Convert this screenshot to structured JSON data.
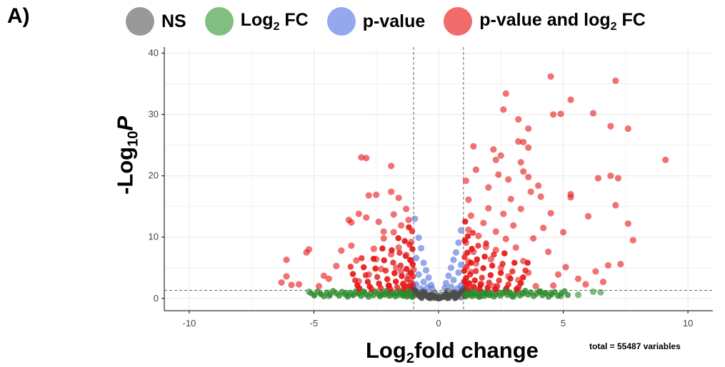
{
  "panel_label": "A)",
  "legend": {
    "items": [
      {
        "label": "NS",
        "sub": "",
        "suffix": "",
        "color": "#999999"
      },
      {
        "label": "Log",
        "sub": "2",
        "suffix": " FC",
        "color": "#7fbf7f"
      },
      {
        "label": "p-value",
        "sub": "",
        "suffix": "",
        "color": "#93a9ee"
      },
      {
        "label": "p-value and log",
        "sub": "2",
        "suffix": " FC",
        "color": "#f26b6b"
      }
    ]
  },
  "axis_titles": {
    "x_main": "Log",
    "x_sub": "2",
    "x_rest": "fold change",
    "y_prefix": "-Log",
    "y_sub": "10",
    "y_rest": "P"
  },
  "footer_note": "total = 55487 variables",
  "chart_data": {
    "type": "scatter",
    "xlim": [
      -11,
      11
    ],
    "ylim": [
      -2,
      41
    ],
    "x_ticks": [
      -10,
      -5,
      0,
      5,
      10
    ],
    "y_ticks": [
      0,
      10,
      20,
      30,
      40
    ],
    "grid": true,
    "legend_position": "top",
    "thresholds": {
      "log2fc": [
        -1,
        1
      ],
      "neg_log10_p": 1.3
    },
    "colors": {
      "NS": "#4d4d4d",
      "FC": "#2e8b2e",
      "P": "#4d6fd9",
      "P_FC": "#e61414"
    },
    "series": [
      {
        "name": "p-value and log2 FC",
        "points": [
          [
            9.1,
            22.6
          ],
          [
            7.1,
            35.5
          ],
          [
            4.5,
            36.2
          ],
          [
            5.3,
            32.4
          ],
          [
            2.7,
            33.4
          ],
          [
            2.6,
            30.8
          ],
          [
            3.2,
            29.2
          ],
          [
            4.9,
            30.1
          ],
          [
            4.6,
            30.0
          ],
          [
            6.2,
            30.2
          ],
          [
            6.9,
            28.1
          ],
          [
            7.6,
            27.7
          ],
          [
            3.6,
            27.7
          ],
          [
            3.4,
            25.5
          ],
          [
            3.2,
            25.6
          ],
          [
            3.6,
            24.6
          ],
          [
            2.2,
            24.3
          ],
          [
            2.5,
            23.3
          ],
          [
            1.4,
            24.8
          ],
          [
            2.3,
            22.6
          ],
          [
            2.4,
            20.2
          ],
          [
            3.3,
            22.2
          ],
          [
            3.4,
            20.7
          ],
          [
            6.4,
            19.6
          ],
          [
            6.9,
            20.0
          ],
          [
            7.2,
            19.6
          ],
          [
            7.1,
            15.2
          ],
          [
            7.6,
            12.2
          ],
          [
            7.8,
            9.5
          ],
          [
            6.0,
            13.4
          ],
          [
            5.3,
            17.0
          ],
          [
            5.3,
            16.5
          ],
          [
            4.0,
            18.4
          ],
          [
            4.1,
            16.6
          ],
          [
            3.7,
            17.4
          ],
          [
            -2.9,
            22.9
          ],
          [
            -3.1,
            23.0
          ],
          [
            -1.9,
            21.6
          ],
          [
            -2.5,
            16.9
          ],
          [
            -2.8,
            16.8
          ],
          [
            -1.9,
            17.4
          ],
          [
            -1.6,
            16.4
          ],
          [
            -3.6,
            12.8
          ],
          [
            -3.5,
            12.4
          ],
          [
            -3.2,
            13.8
          ],
          [
            -2.9,
            13.2
          ],
          [
            -2.4,
            12.5
          ],
          [
            -6.1,
            6.3
          ],
          [
            -6.1,
            3.6
          ],
          [
            -5.2,
            8.0
          ],
          [
            -5.3,
            7.5
          ],
          [
            -4.1,
            5.3
          ],
          [
            -3.9,
            7.8
          ],
          [
            -4.4,
            3.2
          ],
          [
            -3.5,
            8.6
          ],
          [
            -2.2,
            9.8
          ],
          [
            -1.8,
            10.8
          ],
          [
            -1.5,
            11.9
          ],
          [
            -1.2,
            12.8
          ],
          [
            -1.1,
            9.2
          ],
          [
            -1.3,
            7.1
          ],
          [
            -2.5,
            6.4
          ],
          [
            -1.7,
            5.0
          ],
          [
            -1.2,
            3.8
          ],
          [
            -2.8,
            3.9
          ],
          [
            -3.2,
            2.8
          ],
          [
            -1.4,
            2.4
          ],
          [
            -2.0,
            2.1
          ],
          [
            -4.8,
            2.0
          ],
          [
            -5.6,
            2.3
          ],
          [
            -1.6,
            8.3
          ],
          [
            -1.9,
            7.2
          ],
          [
            -2.3,
            4.8
          ],
          [
            1.1,
            19.2
          ],
          [
            1.2,
            16.1
          ],
          [
            1.3,
            13.5
          ],
          [
            1.2,
            11.2
          ],
          [
            1.1,
            9.1
          ],
          [
            1.4,
            7.6
          ],
          [
            1.2,
            6.0
          ],
          [
            1.3,
            4.3
          ],
          [
            1.1,
            2.6
          ],
          [
            1.6,
            10.2
          ],
          [
            1.8,
            12.3
          ],
          [
            2.0,
            14.7
          ],
          [
            1.9,
            8.4
          ],
          [
            2.1,
            6.4
          ],
          [
            2.3,
            10.9
          ],
          [
            2.6,
            13.8
          ],
          [
            2.9,
            16.2
          ],
          [
            2.7,
            9.7
          ],
          [
            3.0,
            11.9
          ],
          [
            3.1,
            8.3
          ],
          [
            2.5,
            5.0
          ],
          [
            2.8,
            3.6
          ],
          [
            3.4,
            6.1
          ],
          [
            3.8,
            9.8
          ],
          [
            4.2,
            11.5
          ],
          [
            4.4,
            7.6
          ],
          [
            3.6,
            4.2
          ],
          [
            4.8,
            3.9
          ],
          [
            5.1,
            5.1
          ],
          [
            5.6,
            3.2
          ],
          [
            6.3,
            4.4
          ],
          [
            6.8,
            5.4
          ],
          [
            7.3,
            5.6
          ],
          [
            6.6,
            2.7
          ],
          [
            5.9,
            2.3
          ],
          [
            4.5,
            13.9
          ],
          [
            5.0,
            10.8
          ],
          [
            4.6,
            2.1
          ],
          [
            3.9,
            2.0
          ],
          [
            2.2,
            2.0
          ],
          [
            1.7,
            2.4
          ],
          [
            1.5,
            5.7
          ],
          [
            2.3,
            7.9
          ],
          [
            3.3,
            14.6
          ],
          [
            3.6,
            19.8
          ],
          [
            2.0,
            18.1
          ],
          [
            1.5,
            21.0
          ],
          [
            2.8,
            19.4
          ],
          [
            3.2,
            3.0
          ],
          [
            -1.0,
            4.7
          ],
          [
            -1.1,
            6.2
          ],
          [
            -1.5,
            4.4
          ],
          [
            -2.6,
            8.1
          ],
          [
            -3.3,
            6.2
          ],
          [
            -4.6,
            3.7
          ],
          [
            -5.9,
            2.2
          ],
          [
            -6.3,
            2.6
          ],
          [
            -2.2,
            10.9
          ],
          [
            -1.3,
            14.6
          ],
          [
            -1.8,
            13.7
          ]
        ]
      },
      {
        "name": "p-value",
        "points": [
          [
            -0.95,
            13.0
          ],
          [
            -0.8,
            9.9
          ],
          [
            -0.7,
            8.2
          ],
          [
            -0.9,
            6.6
          ],
          [
            -0.6,
            5.8
          ],
          [
            -0.5,
            4.6
          ],
          [
            -0.8,
            3.9
          ],
          [
            -0.4,
            3.4
          ],
          [
            -0.6,
            2.7
          ],
          [
            -0.3,
            2.2
          ],
          [
            -0.9,
            2.3
          ],
          [
            -0.45,
            1.8
          ],
          [
            -0.7,
            1.6
          ],
          [
            0.9,
            11.1
          ],
          [
            0.8,
            9.1
          ],
          [
            0.7,
            7.5
          ],
          [
            0.6,
            6.3
          ],
          [
            0.9,
            5.5
          ],
          [
            0.5,
            5.0
          ],
          [
            0.8,
            4.2
          ],
          [
            0.4,
            3.7
          ],
          [
            0.6,
            3.0
          ],
          [
            0.3,
            2.5
          ],
          [
            0.9,
            2.1
          ],
          [
            0.5,
            1.9
          ],
          [
            0.75,
            1.6
          ],
          [
            0.25,
            1.7
          ],
          [
            -0.25,
            1.6
          ]
        ]
      },
      {
        "name": "Log2 FC",
        "points": [
          [
            -4.4,
            0.4
          ],
          [
            -3.7,
            0.9
          ],
          [
            -3.0,
            1.1
          ],
          [
            -2.3,
            0.7
          ],
          [
            -1.5,
            0.9
          ],
          [
            -5.2,
            1.1
          ],
          [
            -2.0,
            0.5
          ],
          [
            -1.2,
            1.2
          ],
          [
            1.3,
            1.0
          ],
          [
            2.0,
            0.6
          ],
          [
            2.7,
            1.1
          ],
          [
            3.4,
            0.8
          ],
          [
            4.1,
            1.1
          ],
          [
            4.9,
            0.4
          ],
          [
            5.6,
            0.6
          ],
          [
            6.2,
            1.1
          ],
          [
            6.5,
            1.0
          ],
          [
            1.7,
            0.4
          ],
          [
            3.0,
            0.3
          ],
          [
            4.5,
            0.9
          ]
        ]
      },
      {
        "name": "NS",
        "points": [
          [
            -0.9,
            0.6
          ],
          [
            -0.7,
            0.3
          ],
          [
            -0.5,
            0.9
          ],
          [
            -0.4,
            0.2
          ],
          [
            -0.3,
            0.5
          ],
          [
            -0.2,
            0.1
          ],
          [
            -0.1,
            0.4
          ],
          [
            0.0,
            0.2
          ],
          [
            0.1,
            0.6
          ],
          [
            0.2,
            0.3
          ],
          [
            0.3,
            0.8
          ],
          [
            0.4,
            0.1
          ],
          [
            0.5,
            0.5
          ],
          [
            0.6,
            0.9
          ],
          [
            0.7,
            0.3
          ],
          [
            0.8,
            0.7
          ],
          [
            0.9,
            0.2
          ],
          [
            -0.6,
            1.1
          ],
          [
            0.35,
            1.2
          ],
          [
            -0.15,
            0.9
          ]
        ]
      }
    ]
  }
}
